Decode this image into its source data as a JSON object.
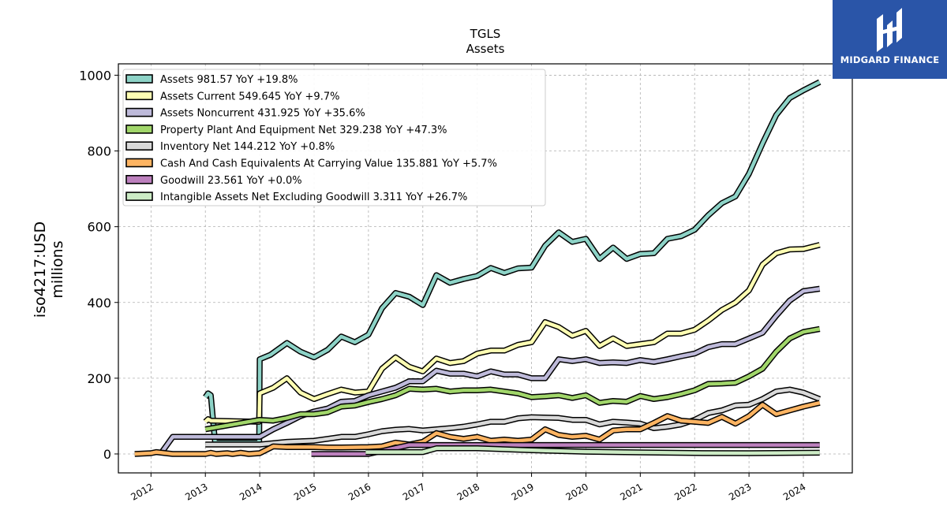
{
  "brand": {
    "name": "MIDGARD FINANCE",
    "bg_color": "#2a55a8"
  },
  "chart_data": {
    "type": "line",
    "title": "TGLS",
    "subtitle": "Assets",
    "ylabel_line1": "iso4217:USD",
    "ylabel_line2": "millions",
    "xlim": [
      2011.4,
      2024.9
    ],
    "ylim": [
      -50,
      1030
    ],
    "yticks": [
      0,
      200,
      400,
      600,
      800,
      1000
    ],
    "xticks": [
      2012,
      2013,
      2014,
      2015,
      2016,
      2017,
      2018,
      2019,
      2020,
      2021,
      2022,
      2023,
      2024
    ],
    "grid": true,
    "legend_position": "top-left",
    "series": [
      {
        "name": "Assets",
        "legend": "Assets  981.57 YoY +19.8%",
        "color": "#8dd3c7",
        "points": [
          [
            2013.0,
            150
          ],
          [
            2013.05,
            160
          ],
          [
            2013.1,
            155
          ],
          [
            2013.18,
            30
          ],
          [
            2013.99,
            30
          ],
          [
            2014.0,
            250
          ],
          [
            2014.2,
            262
          ],
          [
            2014.5,
            293
          ],
          [
            2014.75,
            270
          ],
          [
            2015.0,
            255
          ],
          [
            2015.25,
            275
          ],
          [
            2015.5,
            310
          ],
          [
            2015.75,
            295
          ],
          [
            2016.0,
            315
          ],
          [
            2016.25,
            385
          ],
          [
            2016.5,
            425
          ],
          [
            2016.75,
            415
          ],
          [
            2017.0,
            393
          ],
          [
            2017.25,
            472
          ],
          [
            2017.5,
            452
          ],
          [
            2017.75,
            462
          ],
          [
            2018.0,
            470
          ],
          [
            2018.25,
            491
          ],
          [
            2018.5,
            478
          ],
          [
            2018.75,
            490
          ],
          [
            2019.0,
            492
          ],
          [
            2019.25,
            550
          ],
          [
            2019.5,
            585
          ],
          [
            2019.75,
            560
          ],
          [
            2020.0,
            568
          ],
          [
            2020.25,
            515
          ],
          [
            2020.5,
            545
          ],
          [
            2020.75,
            515
          ],
          [
            2021.0,
            528
          ],
          [
            2021.25,
            530
          ],
          [
            2021.5,
            568
          ],
          [
            2021.75,
            575
          ],
          [
            2022.0,
            592
          ],
          [
            2022.25,
            630
          ],
          [
            2022.5,
            662
          ],
          [
            2022.75,
            680
          ],
          [
            2023.0,
            740
          ],
          [
            2023.25,
            820
          ],
          [
            2023.5,
            895
          ],
          [
            2023.75,
            940
          ],
          [
            2024.0,
            960
          ],
          [
            2024.3,
            982
          ]
        ]
      },
      {
        "name": "Assets Current",
        "legend": "Assets Current  549.645 YoY +9.7%",
        "color": "#ffffb3",
        "points": [
          [
            2013.0,
            85
          ],
          [
            2013.05,
            92
          ],
          [
            2013.1,
            88
          ],
          [
            2013.99,
            85
          ],
          [
            2014.0,
            160
          ],
          [
            2014.25,
            175
          ],
          [
            2014.5,
            200
          ],
          [
            2014.75,
            162
          ],
          [
            2015.0,
            145
          ],
          [
            2015.25,
            158
          ],
          [
            2015.5,
            170
          ],
          [
            2015.75,
            162
          ],
          [
            2016.0,
            165
          ],
          [
            2016.25,
            225
          ],
          [
            2016.5,
            255
          ],
          [
            2016.75,
            230
          ],
          [
            2017.0,
            218
          ],
          [
            2017.25,
            252
          ],
          [
            2017.5,
            240
          ],
          [
            2017.75,
            245
          ],
          [
            2018.0,
            265
          ],
          [
            2018.25,
            273
          ],
          [
            2018.5,
            273
          ],
          [
            2018.75,
            288
          ],
          [
            2019.0,
            295
          ],
          [
            2019.25,
            348
          ],
          [
            2019.5,
            335
          ],
          [
            2019.75,
            312
          ],
          [
            2020.0,
            325
          ],
          [
            2020.25,
            285
          ],
          [
            2020.5,
            305
          ],
          [
            2020.75,
            285
          ],
          [
            2021.0,
            290
          ],
          [
            2021.25,
            295
          ],
          [
            2021.5,
            318
          ],
          [
            2021.75,
            318
          ],
          [
            2022.0,
            328
          ],
          [
            2022.25,
            352
          ],
          [
            2022.5,
            380
          ],
          [
            2022.75,
            400
          ],
          [
            2023.0,
            432
          ],
          [
            2023.25,
            500
          ],
          [
            2023.5,
            530
          ],
          [
            2023.75,
            540
          ],
          [
            2024.0,
            541
          ],
          [
            2024.3,
            552
          ]
        ]
      },
      {
        "name": "Assets Noncurrent",
        "legend": "Assets Noncurrent  431.925 YoY +35.6%",
        "color": "#bebada",
        "points": [
          [
            2012.2,
            5
          ],
          [
            2012.4,
            45
          ],
          [
            2013.0,
            45
          ],
          [
            2014.0,
            45
          ],
          [
            2014.25,
            65
          ],
          [
            2014.5,
            82
          ],
          [
            2014.75,
            100
          ],
          [
            2015.0,
            112
          ],
          [
            2015.25,
            120
          ],
          [
            2015.5,
            138
          ],
          [
            2015.75,
            140
          ],
          [
            2016.0,
            155
          ],
          [
            2016.25,
            165
          ],
          [
            2016.5,
            175
          ],
          [
            2016.75,
            192
          ],
          [
            2017.0,
            192
          ],
          [
            2017.25,
            220
          ],
          [
            2017.5,
            212
          ],
          [
            2017.75,
            212
          ],
          [
            2018.0,
            205
          ],
          [
            2018.25,
            218
          ],
          [
            2018.5,
            210
          ],
          [
            2018.75,
            210
          ],
          [
            2019.0,
            200
          ],
          [
            2019.25,
            200
          ],
          [
            2019.5,
            250
          ],
          [
            2019.75,
            245
          ],
          [
            2020.0,
            250
          ],
          [
            2020.25,
            240
          ],
          [
            2020.5,
            242
          ],
          [
            2020.75,
            240
          ],
          [
            2021.0,
            248
          ],
          [
            2021.25,
            243
          ],
          [
            2021.5,
            250
          ],
          [
            2021.75,
            258
          ],
          [
            2022.0,
            265
          ],
          [
            2022.25,
            282
          ],
          [
            2022.5,
            290
          ],
          [
            2022.75,
            290
          ],
          [
            2023.0,
            305
          ],
          [
            2023.25,
            320
          ],
          [
            2023.5,
            365
          ],
          [
            2023.75,
            405
          ],
          [
            2024.0,
            430
          ],
          [
            2024.3,
            436
          ]
        ]
      },
      {
        "name": "Property Plant And Equipment Net",
        "legend": "Property Plant And Equipment Net  329.238 YoY +47.3%",
        "color": "#a1d66a",
        "points": [
          [
            2013.0,
            65
          ],
          [
            2014.0,
            90
          ],
          [
            2014.25,
            88
          ],
          [
            2014.5,
            95
          ],
          [
            2014.75,
            105
          ],
          [
            2015.0,
            105
          ],
          [
            2015.25,
            110
          ],
          [
            2015.5,
            125
          ],
          [
            2015.75,
            128
          ],
          [
            2016.0,
            137
          ],
          [
            2016.25,
            145
          ],
          [
            2016.5,
            155
          ],
          [
            2016.75,
            172
          ],
          [
            2017.0,
            170
          ],
          [
            2017.25,
            172
          ],
          [
            2017.5,
            165
          ],
          [
            2017.75,
            168
          ],
          [
            2018.0,
            168
          ],
          [
            2018.25,
            170
          ],
          [
            2018.5,
            165
          ],
          [
            2018.75,
            160
          ],
          [
            2019.0,
            150
          ],
          [
            2019.25,
            152
          ],
          [
            2019.5,
            155
          ],
          [
            2019.75,
            148
          ],
          [
            2020.0,
            155
          ],
          [
            2020.25,
            135
          ],
          [
            2020.5,
            140
          ],
          [
            2020.75,
            138
          ],
          [
            2021.0,
            153
          ],
          [
            2021.25,
            145
          ],
          [
            2021.5,
            150
          ],
          [
            2021.75,
            158
          ],
          [
            2022.0,
            168
          ],
          [
            2022.25,
            185
          ],
          [
            2022.5,
            186
          ],
          [
            2022.75,
            188
          ],
          [
            2023.0,
            205
          ],
          [
            2023.25,
            225
          ],
          [
            2023.5,
            270
          ],
          [
            2023.75,
            305
          ],
          [
            2024.0,
            322
          ],
          [
            2024.3,
            330
          ]
        ]
      },
      {
        "name": "Inventory Net",
        "legend": "Inventory Net  144.212 YoY +0.8%",
        "color": "#d9d9d9",
        "points": [
          [
            2013.0,
            25
          ],
          [
            2014.0,
            25
          ],
          [
            2014.5,
            32
          ],
          [
            2015.0,
            35
          ],
          [
            2015.25,
            40
          ],
          [
            2015.5,
            45
          ],
          [
            2015.75,
            45
          ],
          [
            2016.0,
            52
          ],
          [
            2016.25,
            60
          ],
          [
            2016.5,
            64
          ],
          [
            2016.75,
            66
          ],
          [
            2017.0,
            62
          ],
          [
            2017.25,
            65
          ],
          [
            2017.5,
            68
          ],
          [
            2017.75,
            72
          ],
          [
            2018.0,
            78
          ],
          [
            2018.25,
            85
          ],
          [
            2018.5,
            85
          ],
          [
            2018.75,
            94
          ],
          [
            2019.0,
            97
          ],
          [
            2019.5,
            95
          ],
          [
            2019.75,
            90
          ],
          [
            2020.0,
            90
          ],
          [
            2020.25,
            78
          ],
          [
            2020.5,
            85
          ],
          [
            2020.75,
            83
          ],
          [
            2021.0,
            80
          ],
          [
            2021.25,
            68
          ],
          [
            2021.5,
            72
          ],
          [
            2021.75,
            78
          ],
          [
            2022.0,
            90
          ],
          [
            2022.25,
            108
          ],
          [
            2022.5,
            115
          ],
          [
            2022.75,
            128
          ],
          [
            2023.0,
            130
          ],
          [
            2023.25,
            145
          ],
          [
            2023.5,
            165
          ],
          [
            2023.75,
            170
          ],
          [
            2024.0,
            162
          ],
          [
            2024.3,
            145
          ]
        ]
      },
      {
        "name": "Cash And Cash Equivalents At Carrying Value",
        "legend": "Cash And Cash Equivalents At Carrying Value  135.881 YoY +5.7%",
        "color": "#fdb462",
        "points": [
          [
            2011.7,
            0
          ],
          [
            2012.0,
            2
          ],
          [
            2012.1,
            5
          ],
          [
            2012.4,
            0
          ],
          [
            2013.0,
            0
          ],
          [
            2013.1,
            3
          ],
          [
            2013.2,
            0
          ],
          [
            2013.4,
            2
          ],
          [
            2013.5,
            0
          ],
          [
            2013.65,
            3
          ],
          [
            2013.8,
            0
          ],
          [
            2014.0,
            2
          ],
          [
            2014.25,
            20
          ],
          [
            2014.5,
            18
          ],
          [
            2015.0,
            18
          ],
          [
            2015.25,
            17
          ],
          [
            2015.5,
            17
          ],
          [
            2016.0,
            18
          ],
          [
            2016.25,
            20
          ],
          [
            2016.5,
            30
          ],
          [
            2016.75,
            25
          ],
          [
            2017.0,
            32
          ],
          [
            2017.25,
            55
          ],
          [
            2017.5,
            45
          ],
          [
            2017.75,
            40
          ],
          [
            2018.0,
            45
          ],
          [
            2018.25,
            35
          ],
          [
            2018.5,
            38
          ],
          [
            2018.75,
            35
          ],
          [
            2019.0,
            38
          ],
          [
            2019.25,
            65
          ],
          [
            2019.5,
            50
          ],
          [
            2019.75,
            45
          ],
          [
            2020.0,
            48
          ],
          [
            2020.25,
            38
          ],
          [
            2020.5,
            62
          ],
          [
            2020.75,
            65
          ],
          [
            2021.0,
            65
          ],
          [
            2021.25,
            82
          ],
          [
            2021.5,
            100
          ],
          [
            2021.75,
            88
          ],
          [
            2022.0,
            85
          ],
          [
            2022.25,
            82
          ],
          [
            2022.5,
            98
          ],
          [
            2022.75,
            80
          ],
          [
            2023.0,
            100
          ],
          [
            2023.25,
            130
          ],
          [
            2023.5,
            105
          ],
          [
            2023.75,
            115
          ],
          [
            2024.0,
            125
          ],
          [
            2024.3,
            135
          ]
        ]
      },
      {
        "name": "Goodwill",
        "legend": "Goodwill  23.561 YoY +0.0%",
        "color": "#bc80bd",
        "points": [
          [
            2014.95,
            0
          ],
          [
            2016.0,
            0
          ],
          [
            2016.75,
            23.561
          ],
          [
            2024.3,
            23.561
          ]
        ]
      },
      {
        "name": "Intangible Assets Net Excluding Goodwill",
        "legend": "Intangible Assets Net Excluding Goodwill  3.311 YoY +26.7%",
        "color": "#ccebc5",
        "points": [
          [
            2015.95,
            5
          ],
          [
            2016.75,
            5
          ],
          [
            2017.0,
            5
          ],
          [
            2017.25,
            15
          ],
          [
            2018.0,
            15
          ],
          [
            2019.0,
            10
          ],
          [
            2020.0,
            6
          ],
          [
            2021.0,
            4
          ],
          [
            2022.0,
            2.5
          ],
          [
            2023.0,
            2
          ],
          [
            2024.0,
            3
          ],
          [
            2024.3,
            3.311
          ]
        ]
      }
    ]
  }
}
